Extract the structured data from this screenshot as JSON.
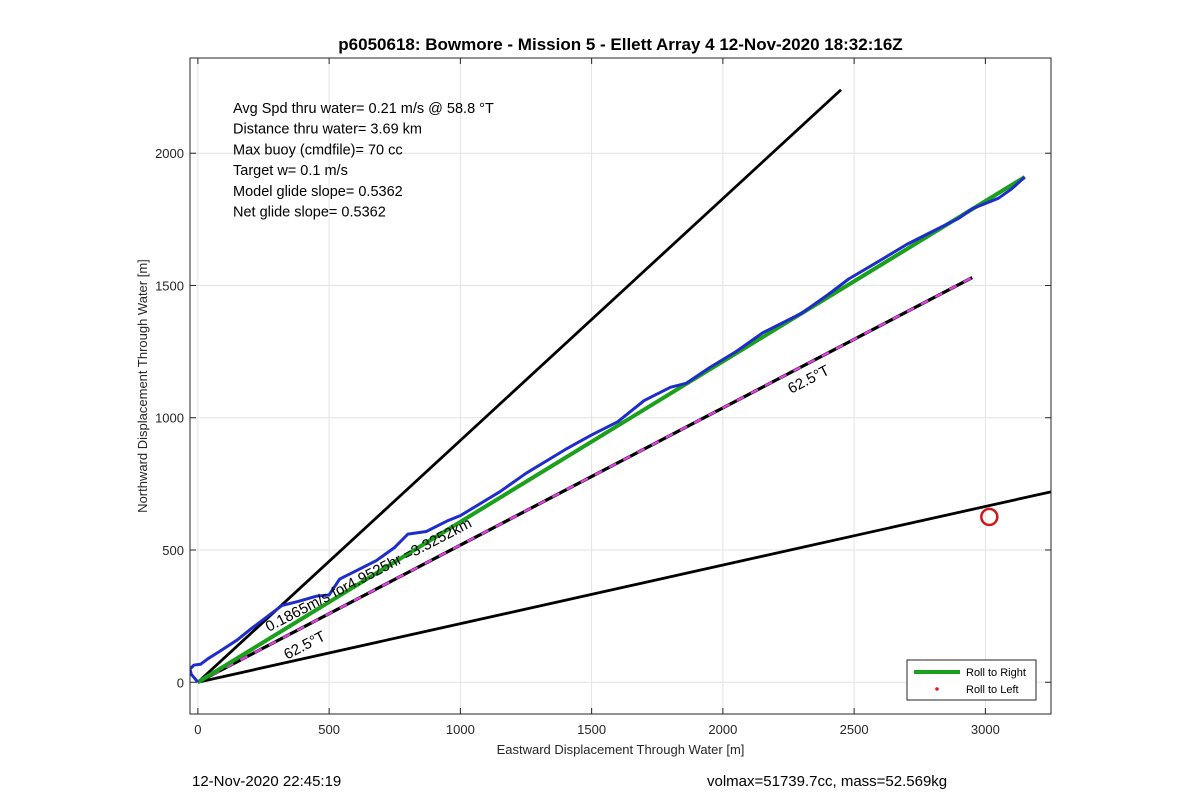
{
  "chart_data": {
    "type": "line",
    "title": "p6050618: Bowmore - Mission 5 - Ellett Array 4 12-Nov-2020 18:32:16Z",
    "xlabel": "Eastward Displacement Through Water [m]",
    "ylabel": "Northward Displacement Through Water [m]",
    "xlim": [
      -30,
      3250
    ],
    "ylim": [
      -120,
      2360
    ],
    "xticks": [
      0,
      500,
      1000,
      1500,
      2000,
      2500,
      3000
    ],
    "yticks": [
      0,
      500,
      1000,
      1500,
      2000
    ],
    "grid": true,
    "legend_position": "bottom-right",
    "info_lines": [
      "Avg Spd thru water=  0.21 m/s @  58.8 °T",
      "Distance thru water=  3.69 km",
      "Max buoy (cmdfile)= 70 cc",
      "Target w= 0.1 m/s",
      "Model glide slope= 0.5362",
      "Net glide slope= 0.5362"
    ],
    "series": [
      {
        "name": "Roll to Right",
        "color": "#1aa01a",
        "x": [
          0,
          3150
        ],
        "y": [
          0,
          1910
        ]
      },
      {
        "name": "Roll to Left",
        "color": "#e02020",
        "x": [],
        "y": []
      }
    ],
    "track": {
      "color": "#1f2ccc",
      "x": [
        0,
        -10,
        -25,
        -30,
        -15,
        10,
        40,
        80,
        150,
        200,
        260,
        320,
        380,
        450,
        500,
        540,
        600,
        680,
        750,
        800,
        870,
        950,
        1000,
        1100,
        1150,
        1250,
        1400,
        1500,
        1600,
        1700,
        1800,
        1860,
        1950,
        2050,
        2150,
        2300,
        2400,
        2480,
        2600,
        2700,
        2800,
        2900,
        2950,
        3050,
        3100,
        3150
      ],
      "y": [
        0,
        12,
        30,
        50,
        65,
        68,
        90,
        115,
        160,
        200,
        245,
        290,
        305,
        325,
        330,
        390,
        420,
        460,
        510,
        560,
        570,
        610,
        630,
        690,
        720,
        790,
        880,
        935,
        985,
        1065,
        1115,
        1130,
        1190,
        1250,
        1320,
        1395,
        1465,
        1525,
        1595,
        1655,
        1705,
        1755,
        1790,
        1830,
        1865,
        1910
      ]
    },
    "reference_lines": [
      {
        "color": "#000000",
        "style": "solid",
        "x": [
          0,
          2450
        ],
        "y": [
          0,
          2240
        ]
      },
      {
        "color": "#000000",
        "style": "solid",
        "x": [
          0,
          3250
        ],
        "y": [
          0,
          720
        ]
      },
      {
        "color": "#000000",
        "dash_color": "#e040e0",
        "style": "dashed",
        "x": [
          0,
          2950
        ],
        "y": [
          0,
          1530
        ]
      }
    ],
    "annotations": [
      {
        "text": "62.5°T",
        "x": 2260,
        "y": 1090,
        "angle": -27.4
      },
      {
        "text": "62.5°T",
        "x": 340,
        "y": 85,
        "angle": -27.4
      },
      {
        "text": "0.1865m/s for4.9525hr =3.3252km",
        "x": 270,
        "y": 190,
        "angle": -27.4
      }
    ],
    "target_marker": {
      "x": 3015,
      "y": 625,
      "color": "#d01818"
    }
  },
  "footer": {
    "timestamp": "12-Nov-2020 22:45:19",
    "info": "volmax=51739.7cc, mass=52.569kg"
  }
}
